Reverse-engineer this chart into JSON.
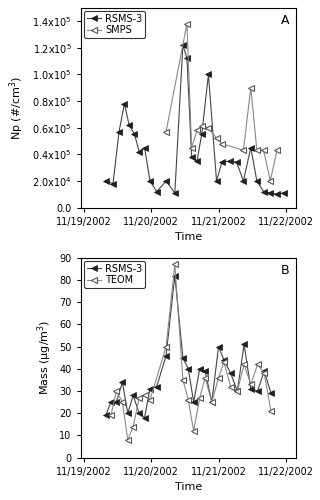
{
  "panel_A": {
    "title": "A",
    "ylabel": "Np (#/cm$^3$)",
    "xlabel": "Time",
    "ylim": [
      0,
      150000.0
    ],
    "yticks": [
      0.0,
      20000.0,
      40000.0,
      60000.0,
      80000.0,
      100000.0,
      120000.0,
      140000.0
    ],
    "rsms3": {
      "label": "RSMS-3",
      "x": [
        0.32,
        0.43,
        0.52,
        0.6,
        0.67,
        0.75,
        0.82,
        0.9,
        0.98,
        1.08,
        1.22,
        1.35,
        1.47,
        1.53,
        1.6,
        1.68,
        1.75,
        1.85,
        1.97,
        2.05,
        2.17,
        2.27,
        2.37,
        2.48,
        2.57,
        2.67,
        2.77,
        2.87,
        2.97
      ],
      "y": [
        20000.0,
        18000.0,
        57000.0,
        78000.0,
        62000.0,
        55000.0,
        42000.0,
        45000.0,
        20000.0,
        12000.0,
        20000.0,
        11000.0,
        122000.0,
        112000.0,
        38000.0,
        35000.0,
        55000.0,
        100000.0,
        20000.0,
        34000.0,
        35000.0,
        34000.0,
        20000.0,
        45000.0,
        20000.0,
        12000.0,
        11000.0,
        10000.0,
        11000.0
      ]
    },
    "smps": {
      "label": "SMPS",
      "x": [
        1.22,
        1.53,
        1.6,
        1.68,
        1.75,
        1.85,
        1.97,
        2.05,
        2.37,
        2.48,
        2.57,
        2.67,
        2.77,
        2.87
      ],
      "y": [
        57000.0,
        138000.0,
        45000.0,
        58000.0,
        61000.0,
        60000.0,
        52000.0,
        48000.0,
        43000.0,
        90000.0,
        43000.0,
        43000.0,
        20000.0,
        43000.0
      ]
    }
  },
  "panel_B": {
    "title": "B",
    "ylabel": "Mass (μg/m$^3$)",
    "xlabel": "Time",
    "ylim": [
      0,
      90
    ],
    "yticks": [
      0,
      10,
      20,
      30,
      40,
      50,
      60,
      70,
      80,
      90
    ],
    "rsms3": {
      "label": "RSMS-3",
      "x": [
        0.32,
        0.4,
        0.48,
        0.57,
        0.65,
        0.73,
        0.82,
        0.9,
        0.98,
        1.08,
        1.22,
        1.35,
        1.47,
        1.55,
        1.63,
        1.72,
        1.8,
        1.9,
        2.0,
        2.08,
        2.18,
        2.28,
        2.38,
        2.48,
        2.58,
        2.68,
        2.78
      ],
      "y": [
        19,
        25,
        25,
        34,
        20,
        28,
        20,
        18,
        31,
        32,
        46,
        82,
        45,
        40,
        25,
        40,
        39,
        25,
        50,
        44,
        38,
        30,
        51,
        31,
        30,
        39,
        29
      ]
    },
    "teom": {
      "label": "TEOM",
      "x": [
        0.4,
        0.48,
        0.57,
        0.65,
        0.73,
        0.82,
        0.9,
        0.98,
        1.22,
        1.35,
        1.47,
        1.55,
        1.63,
        1.72,
        1.8,
        1.9,
        2.0,
        2.08,
        2.18,
        2.28,
        2.38,
        2.48,
        2.58,
        2.68,
        2.78
      ],
      "y": [
        19,
        30,
        25,
        8,
        14,
        27,
        28,
        26,
        50,
        87,
        35,
        26,
        12,
        27,
        36,
        25,
        36,
        43,
        32,
        30,
        42,
        33,
        42,
        38,
        21
      ]
    }
  },
  "xtick_positions": [
    0.0,
    1.0,
    2.0,
    3.0
  ],
  "xtick_labels": [
    "11/19/2002",
    "11/20/2002",
    "11/21/2002",
    "11/22/2002"
  ],
  "marker_size": 4,
  "legend_fontsize": 7,
  "tick_fontsize": 7,
  "label_fontsize": 8,
  "title_fontsize": 9,
  "linewidth": 0.8
}
